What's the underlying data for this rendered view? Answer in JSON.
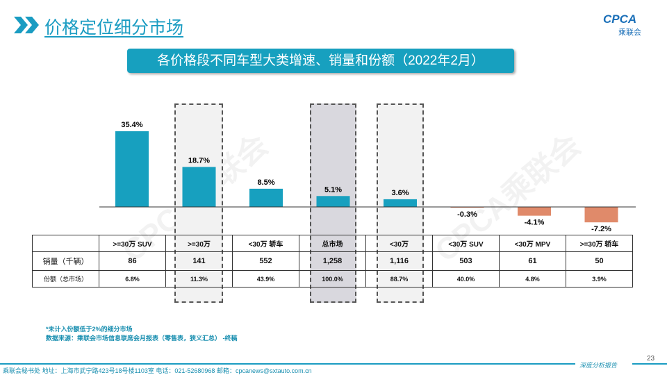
{
  "header": {
    "title": "价格定位细分市场",
    "logo_text": "CPCA",
    "logo_sub": "乘联会"
  },
  "banner": "各价格段不同车型大类增速、销量和份额（2022年2月）",
  "watermark": "CPCA乘联会",
  "chart_data": {
    "type": "bar",
    "categories": [
      ">=30万 SUV",
      ">=30万",
      "<30万 轿车",
      "总市场",
      "<30万",
      "<30万 SUV",
      "<30万 MPV",
      ">=30万 轿车"
    ],
    "values": [
      35.4,
      18.7,
      8.5,
      5.1,
      3.6,
      -0.3,
      -4.1,
      -7.2
    ],
    "labels": [
      "35.4%",
      "18.7%",
      "8.5%",
      "5.1%",
      "3.6%",
      "-0.3%",
      "-4.1%",
      "-7.2%"
    ],
    "positive_color": "#17a0bf",
    "negative_color": "#e08a6a",
    "highlighted": [
      ">=30万",
      "总市场",
      "<30万"
    ]
  },
  "table": {
    "rows": [
      {
        "label": "销量（千辆）",
        "values": [
          "86",
          "141",
          "552",
          "1,258",
          "1,116",
          "503",
          "61",
          "50"
        ]
      },
      {
        "label": "份额（总市场）",
        "values": [
          "6.8%",
          "11.3%",
          "43.9%",
          "100.0%",
          "88.7%",
          "40.0%",
          "4.8%",
          "3.9%"
        ]
      }
    ]
  },
  "notes": [
    "*未计入份额低于2%的细分市场",
    "数据来源：乘联会市场信息联席会月报表（零售表，狭义汇总） -终稿"
  ],
  "footer": {
    "address": "乘联会秘书处   地址：上海市武宁路423号18号楼1103室  电话：021-52680968   邮箱：cpcanews@sxtauto.com.cn",
    "tagline": "深度分析报告",
    "page": "23"
  }
}
